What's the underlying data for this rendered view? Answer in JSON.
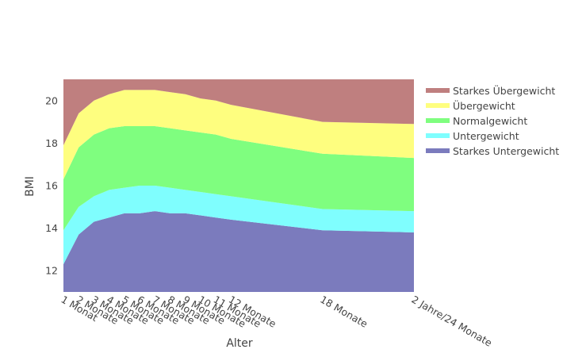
{
  "chart_data": {
    "type": "area",
    "stacked": true,
    "xlabel": "Alter",
    "ylabel": "BMI",
    "ylim": [
      11,
      21
    ],
    "yticks": [
      12,
      14,
      16,
      18,
      20
    ],
    "x_tick_positions": [
      1,
      2,
      3,
      4,
      5,
      6,
      7,
      8,
      9,
      10,
      11,
      12,
      18,
      24
    ],
    "categories": [
      "1 Monat",
      "2 Monate",
      "3 Monate",
      "4 Monate",
      "5 Monate",
      "6 Monate",
      "7 Monate",
      "8 Monate",
      "9 Monate",
      "10 Monate",
      "11 Monate",
      "12 Monate",
      "18 Monate",
      "2 Jahre/24 Monate"
    ],
    "legend_position": "right",
    "series": [
      {
        "name": "Starkes Untergewicht",
        "color": "#7b7bbd",
        "upper": [
          12.3,
          13.7,
          14.3,
          14.5,
          14.7,
          14.7,
          14.8,
          14.7,
          14.7,
          14.6,
          14.5,
          14.4,
          13.9,
          13.8
        ]
      },
      {
        "name": "Untergewicht",
        "color": "#7ffefe",
        "upper": [
          13.9,
          15.0,
          15.5,
          15.8,
          15.9,
          16.0,
          16.0,
          15.9,
          15.8,
          15.7,
          15.6,
          15.5,
          14.9,
          14.8
        ]
      },
      {
        "name": "Normalgewicht",
        "color": "#7ffe7f",
        "upper": [
          16.3,
          17.8,
          18.4,
          18.7,
          18.8,
          18.8,
          18.8,
          18.7,
          18.6,
          18.5,
          18.4,
          18.2,
          17.5,
          17.3
        ]
      },
      {
        "name": "Übergewicht",
        "color": "#fefe7f",
        "upper": [
          17.9,
          19.4,
          20.0,
          20.3,
          20.5,
          20.5,
          20.5,
          20.4,
          20.3,
          20.1,
          20.0,
          19.8,
          19.0,
          18.9
        ]
      },
      {
        "name": "Starkes Übergewicht",
        "color": "#bf7f7f",
        "upper": [
          21,
          21,
          21,
          21,
          21,
          21,
          21,
          21,
          21,
          21,
          21,
          21,
          21,
          21
        ]
      }
    ]
  }
}
